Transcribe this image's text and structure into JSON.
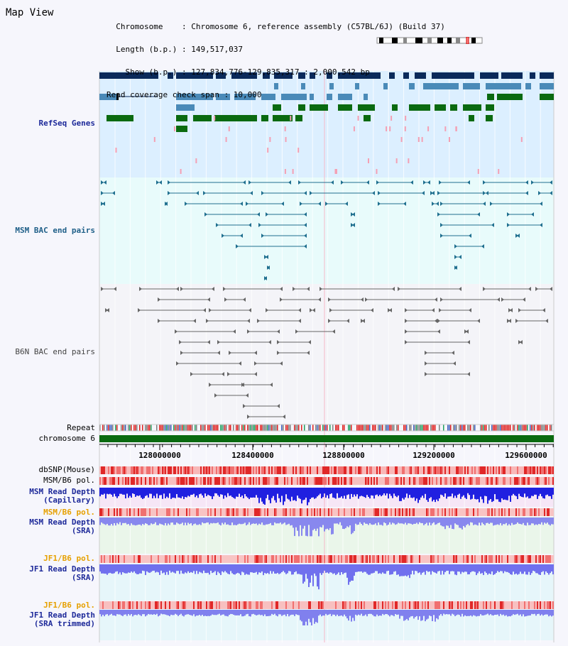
{
  "header": {
    "title": "Map View",
    "info_lines": [
      "  Chromosome    : Chromosome 6, reference assembly (C57BL/6J) (Build 37)",
      "  Length (b.p.) : 149,517,037",
      "    Show (b.p.) : 127,834,776-129,835,317 : 2,000,542 bp",
      "Read coverage check span : 10,000"
    ]
  },
  "tracks": {
    "refseq": {
      "label": "RefSeq Genes",
      "color": "#1e2a9a"
    },
    "msm_bac": {
      "label": "MSM BAC end pairs",
      "color": "#1f5f88"
    },
    "b6n_bac": {
      "label": "B6N BAC end pairs",
      "color": "#444444"
    },
    "repeat": {
      "label": "Repeat"
    },
    "chromosome": {
      "label": "chromosome 6"
    },
    "axis_ticks": [
      "128000000",
      "128400000",
      "128800000",
      "129200000",
      "129600000"
    ],
    "dbsnp": {
      "label": "dbSNP(Mouse)"
    },
    "msm_b6_pol": {
      "label": "MSM/B6 pol."
    },
    "msm_read_cap": {
      "label": "MSM Read Depth\n(Capillary)",
      "color": "#1e2a9a"
    },
    "msm_b6_pol2": {
      "label": "MSM/B6 pol.",
      "color": "#e6a000"
    },
    "msm_read_sra": {
      "label": "MSM Read Depth\n(SRA)",
      "color": "#1e2a9a"
    },
    "jf1_b6_pol": {
      "label": "JF1/B6 pol.",
      "color": "#e6a000"
    },
    "jf1_read_sra": {
      "label": "JF1 Read Depth\n(SRA)",
      "color": "#1e2a9a"
    },
    "jf1_b6_pol2": {
      "label": "JF1/B6 pol.",
      "color": "#e6a000"
    },
    "jf1_read_trim": {
      "label": "JF1 Read Depth\n(SRA trimmed)",
      "color": "#1e2a9a"
    }
  }
}
